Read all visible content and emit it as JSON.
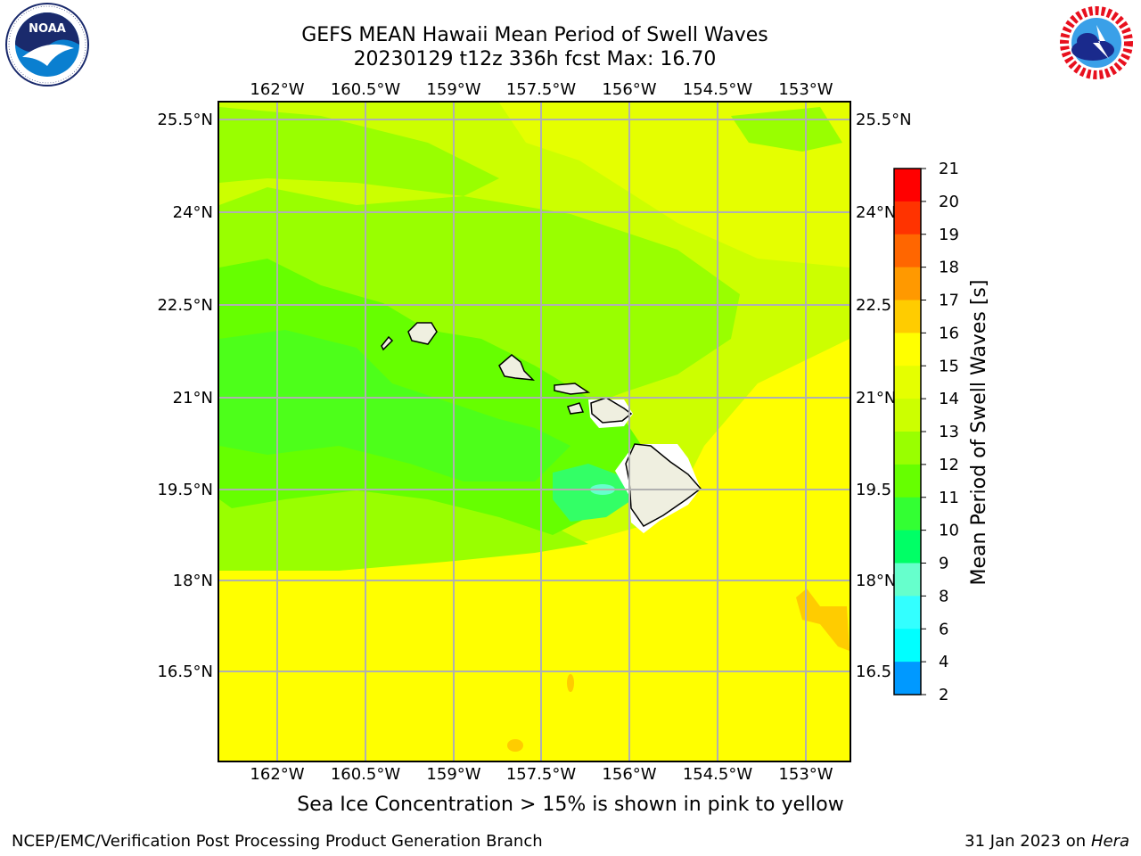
{
  "header": {
    "title_line1": "GEFS MEAN Hawaii Mean Period of Swell Waves",
    "title_line2": "20230129 t12z 336h fcst   Max: 16.70"
  },
  "logos": {
    "left": {
      "name": "noaa-logo",
      "text": "NOAA",
      "ring_text": "NATIONAL OCEANIC AND ATMOSPHERIC ADMINISTRATION · U.S. DEPARTMENT OF COMMERCE"
    },
    "right": {
      "name": "nws-logo",
      "ring_text": "NATIONAL WEATHER SERVICE"
    }
  },
  "map": {
    "lon_labels": [
      "162°W",
      "160.5°W",
      "159°W",
      "157.5°W",
      "156°W",
      "154.5°W",
      "153°W"
    ],
    "lat_labels_left": [
      "25.5°N",
      "24°N",
      "22.5°N",
      "21°N",
      "19.5°N",
      "18°N",
      "16.5°N"
    ],
    "lat_labels_right": [
      "25.5°N",
      "24°N",
      "22.5",
      "21°N",
      "19.5",
      "18°N",
      "16.5"
    ],
    "gridline_color": "#b0b0b0"
  },
  "colorbar": {
    "label": "Mean Period of Swell Waves [s]",
    "ticks": [
      "21",
      "20",
      "19",
      "18",
      "17",
      "16",
      "15",
      "14",
      "13",
      "12",
      "11",
      "10",
      "9",
      "8",
      "6",
      "4",
      "2"
    ],
    "colors": [
      "#ff0000",
      "#ff3300",
      "#ff6600",
      "#ff9900",
      "#ffcc00",
      "#ffff00",
      "#e5ff00",
      "#ccff00",
      "#99ff00",
      "#66ff00",
      "#33ff33",
      "#00ff66",
      "#66ffcc",
      "#33ffff",
      "#00ffff",
      "#0099ff",
      "#0033ff",
      "#0000ff"
    ]
  },
  "caption": "Sea Ice Concentration > 15% is shown in pink to yellow",
  "footer": {
    "left": "NCEP/EMC/Verification Post Processing Product Generation Branch",
    "date": "31 Jan 2023 on ",
    "host": "Hera"
  }
}
